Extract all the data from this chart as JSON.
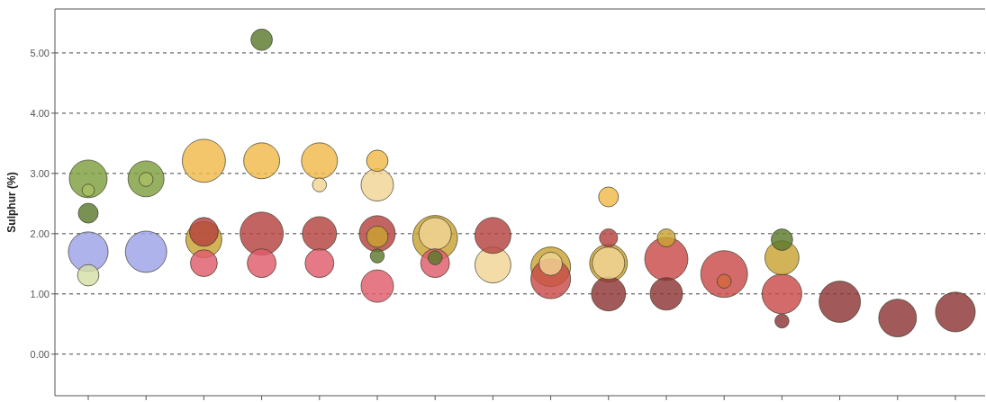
{
  "chart_data": {
    "type": "bubble",
    "ylabel": "Sulphur (%)",
    "categories": [
      null,
      null,
      null,
      null,
      null,
      null,
      null,
      null,
      null,
      null,
      null,
      null,
      null,
      null,
      null,
      null
    ],
    "ylim": [
      -0.69,
      5.73
    ],
    "yticks": [
      {
        "value": 0,
        "label": "0.00"
      },
      {
        "value": 1,
        "label": "1.00"
      },
      {
        "value": 2,
        "label": "2.00"
      },
      {
        "value": 3,
        "label": "3.00"
      },
      {
        "value": 4,
        "label": "4.00"
      },
      {
        "value": 5,
        "label": "5.00"
      }
    ],
    "grid": "y",
    "tick_labels": "y",
    "series": [
      {
        "color": "#7f9f3f",
        "values": [
          2.91,
          2.91,
          null,
          null,
          null,
          null,
          null,
          null,
          null,
          null,
          null,
          null,
          null,
          null,
          null,
          null
        ],
        "sizes": [
          0.65,
          0.59,
          null,
          null,
          null,
          null,
          null,
          null,
          null,
          null,
          null,
          null,
          null,
          null,
          null,
          null
        ]
      },
      {
        "color": "#a8c060",
        "values": [
          2.72,
          2.9,
          null,
          null,
          null,
          null,
          null,
          null,
          null,
          null,
          null,
          null,
          null,
          null,
          null,
          null
        ],
        "sizes": [
          0.07,
          0.09,
          null,
          null,
          null,
          null,
          null,
          null,
          null,
          null,
          null,
          null,
          null,
          null,
          null,
          null
        ]
      },
      {
        "color": "#5c7a2e",
        "values": [
          2.34,
          null,
          null,
          5.22,
          null,
          1.63,
          1.6,
          null,
          null,
          null,
          null,
          null,
          1.9,
          null,
          null,
          null
        ],
        "sizes": [
          0.18,
          null,
          null,
          0.21,
          null,
          0.09,
          0.09,
          null,
          null,
          null,
          null,
          null,
          0.21,
          null,
          null,
          null
        ]
      },
      {
        "color": "#9da2e6",
        "values": [
          1.7,
          1.7,
          null,
          null,
          null,
          null,
          null,
          null,
          null,
          null,
          null,
          null,
          null,
          null,
          null,
          null
        ],
        "sizes": [
          0.72,
          0.78,
          null,
          null,
          null,
          null,
          null,
          null,
          null,
          null,
          null,
          null,
          null,
          null,
          null,
          null
        ]
      },
      {
        "color": "#d4dfa6",
        "values": [
          1.31,
          null,
          null,
          null,
          null,
          null,
          null,
          null,
          null,
          null,
          null,
          null,
          null,
          null,
          null,
          null
        ],
        "sizes": [
          0.21,
          null,
          null,
          null,
          null,
          null,
          null,
          null,
          null,
          null,
          null,
          null,
          null,
          null,
          null,
          null
        ]
      },
      {
        "color": "#f0b94a",
        "values": [
          null,
          null,
          3.21,
          3.21,
          3.21,
          3.21,
          null,
          null,
          null,
          2.61,
          null,
          null,
          null,
          null,
          null,
          null
        ],
        "sizes": [
          null,
          null,
          0.85,
          0.59,
          0.59,
          0.21,
          null,
          null,
          null,
          0.18,
          null,
          null,
          null,
          null,
          null,
          null
        ]
      },
      {
        "color": "#f0d495",
        "values": [
          null,
          null,
          null,
          null,
          2.81,
          2.81,
          2.0,
          1.48,
          1.5,
          1.51,
          null,
          null,
          null,
          null,
          null,
          null
        ],
        "sizes": [
          null,
          null,
          null,
          null,
          0.09,
          0.48,
          0.48,
          0.59,
          0.25,
          0.48,
          null,
          null,
          null,
          null,
          null,
          null
        ]
      },
      {
        "color": "#c9a232",
        "values": [
          null,
          null,
          1.9,
          null,
          null,
          1.95,
          1.93,
          null,
          1.45,
          1.51,
          1.93,
          null,
          1.6,
          null,
          null,
          null
        ],
        "sizes": [
          null,
          null,
          0.59,
          null,
          null,
          0.21,
          0.92,
          null,
          0.72,
          0.65,
          0.15,
          null,
          0.53,
          null,
          null,
          null
        ]
      },
      {
        "color": "#b5433f",
        "values": [
          null,
          null,
          2.03,
          2.0,
          2.0,
          2.0,
          null,
          1.97,
          null,
          1.93,
          null,
          null,
          null,
          null,
          null,
          null
        ],
        "sizes": [
          null,
          null,
          0.38,
          0.85,
          0.53,
          0.59,
          null,
          0.59,
          null,
          0.15,
          null,
          null,
          null,
          null,
          null,
          null
        ]
      },
      {
        "color": "#e05c6b",
        "values": [
          null,
          null,
          1.51,
          1.51,
          1.51,
          1.13,
          1.51,
          null,
          null,
          null,
          null,
          null,
          null,
          null,
          null,
          null
        ],
        "sizes": [
          null,
          null,
          0.33,
          0.38,
          0.38,
          0.48,
          0.38,
          null,
          null,
          null,
          null,
          null,
          null,
          null,
          null,
          null
        ]
      },
      {
        "color": "#c84a48",
        "values": [
          null,
          null,
          null,
          null,
          null,
          null,
          null,
          null,
          1.25,
          null,
          1.58,
          1.33,
          1.0,
          null,
          null,
          null
        ],
        "sizes": [
          null,
          null,
          null,
          null,
          null,
          null,
          null,
          null,
          0.72,
          null,
          0.85,
          1,
          0.72,
          null,
          null,
          null
        ]
      },
      {
        "color": "#d2683c",
        "values": [
          null,
          null,
          null,
          null,
          null,
          null,
          null,
          null,
          null,
          null,
          null,
          1.21,
          null,
          null,
          null,
          null
        ],
        "sizes": [
          null,
          null,
          null,
          null,
          null,
          null,
          null,
          null,
          null,
          null,
          null,
          0.09,
          null,
          null,
          null,
          null
        ]
      },
      {
        "color": "#8e3434",
        "values": [
          null,
          null,
          null,
          null,
          null,
          null,
          null,
          null,
          null,
          1.0,
          1.0,
          null,
          0.55,
          0.87,
          0.6,
          0.7
        ],
        "sizes": [
          null,
          null,
          null,
          null,
          null,
          null,
          null,
          null,
          null,
          0.53,
          0.48,
          null,
          0.09,
          0.78,
          0.65,
          0.72
        ]
      }
    ]
  }
}
